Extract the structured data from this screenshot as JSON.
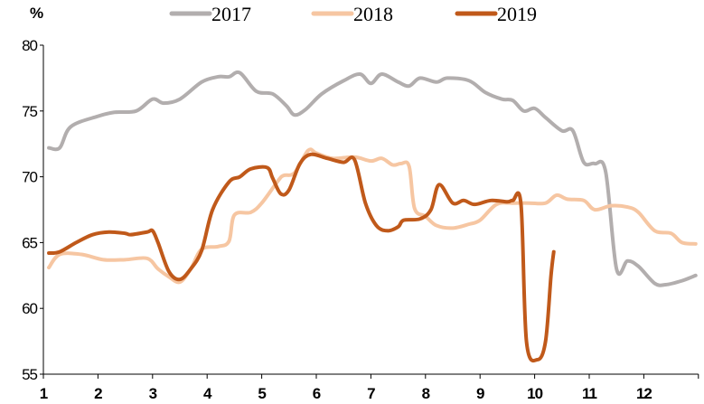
{
  "chart_data": {
    "type": "line",
    "title": "",
    "ylabel": "%",
    "xlabel": "",
    "ylim": [
      55,
      80
    ],
    "xlim": [
      1,
      13
    ],
    "yticks": [
      55,
      60,
      65,
      70,
      75,
      80
    ],
    "xticks": [
      1,
      2,
      3,
      4,
      5,
      6,
      7,
      8,
      9,
      10,
      11,
      12
    ],
    "grid": false,
    "legend_position": "top",
    "series": [
      {
        "name": "2017",
        "color": "#b2aeae",
        "x": [
          1.1,
          1.3,
          1.5,
          2,
          2.3,
          2.7,
          3,
          3.2,
          3.5,
          3.9,
          4.2,
          4.4,
          4.6,
          4.9,
          5.2,
          5.45,
          5.6,
          5.8,
          6.1,
          6.5,
          6.8,
          7.0,
          7.2,
          7.5,
          7.7,
          7.9,
          8.2,
          8.4,
          8.8,
          9.1,
          9.4,
          9.6,
          9.8,
          10,
          10.2,
          10.5,
          10.7,
          10.9,
          11.1,
          11.3,
          11.5,
          11.7,
          11.9,
          12.2,
          12.4,
          12.7,
          12.95
        ],
        "y": [
          72.2,
          72.2,
          73.8,
          74.6,
          74.9,
          75.0,
          75.9,
          75.6,
          75.9,
          77.2,
          77.6,
          77.6,
          77.9,
          76.5,
          76.3,
          75.4,
          74.7,
          75.1,
          76.3,
          77.3,
          77.8,
          77.1,
          77.8,
          77.2,
          76.9,
          77.5,
          77.2,
          77.5,
          77.3,
          76.4,
          75.9,
          75.8,
          75.0,
          75.2,
          74.5,
          73.5,
          73.5,
          71.1,
          71.0,
          70.4,
          63.0,
          63.6,
          63.2,
          61.9,
          61.8,
          62.1,
          62.5
        ]
      },
      {
        "name": "2018",
        "color": "#f6c6a2",
        "x": [
          1.1,
          1.3,
          1.7,
          2.1,
          2.5,
          2.9,
          3.1,
          3.3,
          3.5,
          3.7,
          3.9,
          4.2,
          4.4,
          4.5,
          4.8,
          5.0,
          5.3,
          5.4,
          5.6,
          5.85,
          6.0,
          6.3,
          6.7,
          7.0,
          7.2,
          7.4,
          7.55,
          7.7,
          7.8,
          8.0,
          8.2,
          8.5,
          8.8,
          9.0,
          9.3,
          9.6,
          9.9,
          10.2,
          10.4,
          10.6,
          10.9,
          11.1,
          11.4,
          11.7,
          11.9,
          12.2,
          12.5,
          12.7,
          12.95
        ],
        "y": [
          63.1,
          64.1,
          64.1,
          63.7,
          63.7,
          63.8,
          63.0,
          62.4,
          62.0,
          63.0,
          64.5,
          64.7,
          65.1,
          67.1,
          67.3,
          68.0,
          69.7,
          70.1,
          70.3,
          72.0,
          71.8,
          71.4,
          71.5,
          71.2,
          71.4,
          70.9,
          71.0,
          70.8,
          67.6,
          67.0,
          66.3,
          66.1,
          66.4,
          66.7,
          67.9,
          68.0,
          68.0,
          68.0,
          68.6,
          68.3,
          68.2,
          67.5,
          67.8,
          67.7,
          67.3,
          65.9,
          65.7,
          65.0,
          64.9
        ]
      },
      {
        "name": "2019",
        "color": "#c0591a",
        "x": [
          1.1,
          1.3,
          1.6,
          1.9,
          2.2,
          2.5,
          2.6,
          2.9,
          3.0,
          3.1,
          3.3,
          3.5,
          3.7,
          3.9,
          4.1,
          4.4,
          4.6,
          4.8,
          5.1,
          5.2,
          5.35,
          5.5,
          5.7,
          5.9,
          6.2,
          6.5,
          6.7,
          6.9,
          7.1,
          7.3,
          7.5,
          7.6,
          7.9,
          8.1,
          8.25,
          8.5,
          8.7,
          8.9,
          9.2,
          9.5,
          9.6,
          9.75,
          9.85,
          10.05,
          10.2,
          10.3,
          10.35
        ],
        "y": [
          64.2,
          64.3,
          65.0,
          65.6,
          65.8,
          65.7,
          65.6,
          65.8,
          65.9,
          65.0,
          62.8,
          62.2,
          63.0,
          64.4,
          67.5,
          69.6,
          70.0,
          70.6,
          70.7,
          69.9,
          68.7,
          69.0,
          71.0,
          71.7,
          71.4,
          71.1,
          71.3,
          68.0,
          66.3,
          65.9,
          66.2,
          66.7,
          66.8,
          67.5,
          69.4,
          68.0,
          68.2,
          67.9,
          68.2,
          68.1,
          68.2,
          67.9,
          57.5,
          56.1,
          57.5,
          62.5,
          64.3
        ]
      }
    ]
  }
}
